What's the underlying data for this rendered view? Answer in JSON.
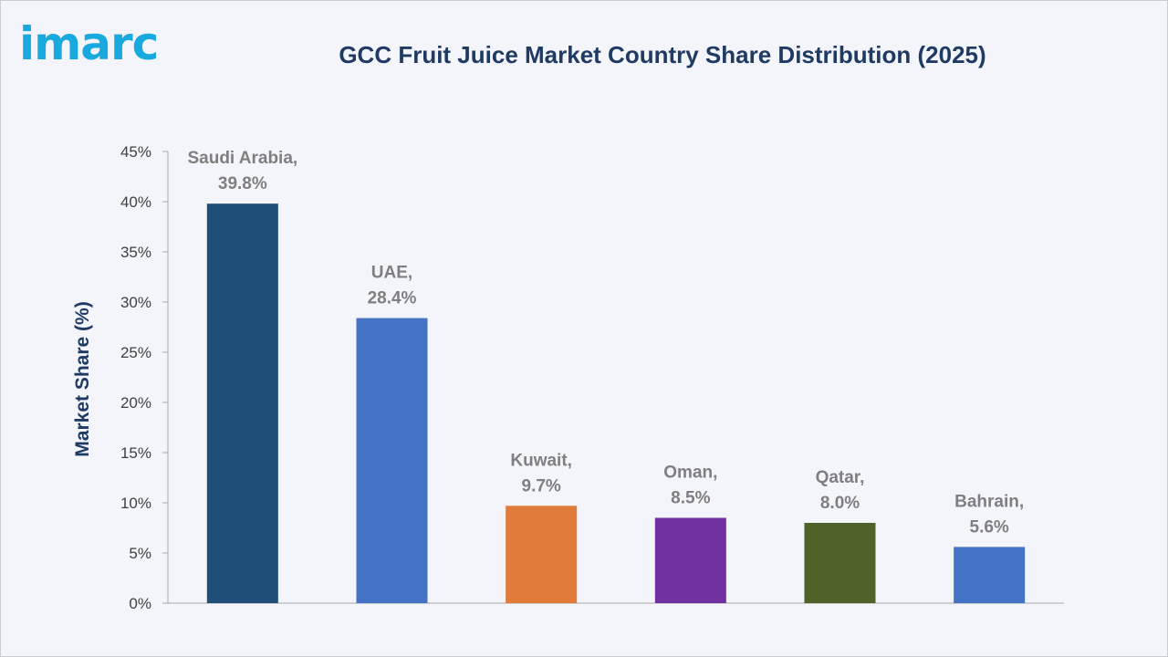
{
  "brand": {
    "logo_text": "imarc",
    "logo_color": "#1aa9de"
  },
  "chart_data": {
    "type": "bar",
    "title": "GCC Fruit Juice Market Country Share Distribution (2025)",
    "ylabel": "Market Share (%)",
    "xlabel": "",
    "ylim": [
      0,
      45
    ],
    "yticks": [
      "0%",
      "5%",
      "10%",
      "15%",
      "20%",
      "25%",
      "30%",
      "35%",
      "40%",
      "45%"
    ],
    "categories": [
      "Saudi Arabia",
      "UAE",
      "Kuwait",
      "Oman",
      "Qatar",
      "Bahrain"
    ],
    "values": [
      39.8,
      28.4,
      9.7,
      8.5,
      8.0,
      5.6
    ],
    "data_labels": [
      [
        "Saudi Arabia,",
        "39.8%"
      ],
      [
        "UAE,",
        "28.4%"
      ],
      [
        "Kuwait,",
        "9.7%"
      ],
      [
        "Oman,",
        "8.5%"
      ],
      [
        "Qatar,",
        "8.0%"
      ],
      [
        "Bahrain,",
        "5.6%"
      ]
    ],
    "colors": [
      "#1f4e79",
      "#4472c4",
      "#e07b39",
      "#7030a0",
      "#4f6228",
      "#4472c4"
    ],
    "grid": false
  }
}
